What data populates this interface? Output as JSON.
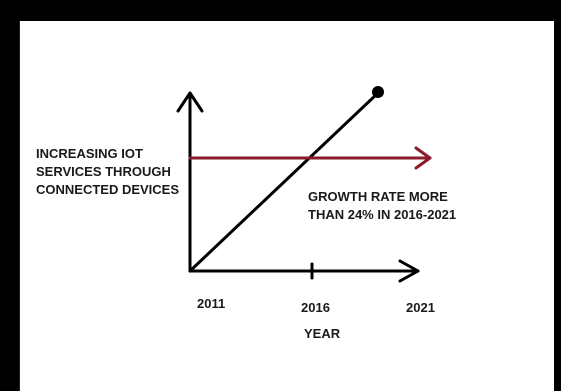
{
  "diagram": {
    "y_axis_label_lines": [
      "INCREASING IOT",
      "SERVICES THROUGH",
      "CONNECTED DEVICES"
    ],
    "annotation_lines": [
      "GROWTH RATE MORE",
      "THAN 24% IN 2016-2021"
    ],
    "x_ticks": [
      "2011",
      "2016",
      "2021"
    ],
    "x_axis_label": "YEAR"
  },
  "colors": {
    "frame": "#000000",
    "background": "#ffffff",
    "growth_line": "#000000",
    "arrow": "#8b1a2c"
  }
}
